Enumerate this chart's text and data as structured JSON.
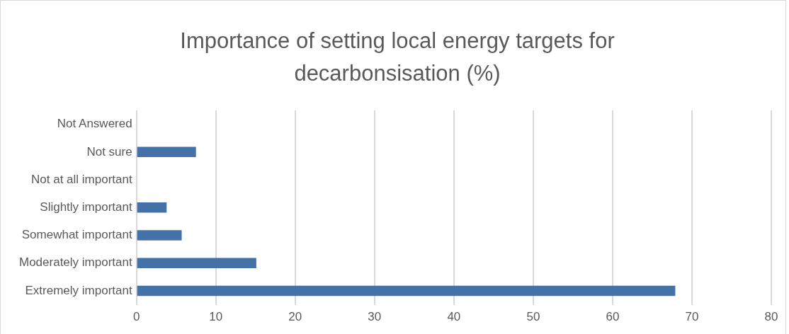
{
  "chart_data": {
    "type": "bar",
    "orientation": "horizontal",
    "title": "Importance of setting local energy targets for decarbonsisation (%)",
    "categories": [
      "Not Answered",
      "Not sure",
      "Not at all important",
      "Slightly important",
      "Somewhat important",
      "Moderately important",
      "Extremely important"
    ],
    "values": [
      0,
      7.5,
      0,
      3.8,
      5.7,
      15.1,
      67.9
    ],
    "color": "#4472a8",
    "xlim": [
      0,
      80
    ],
    "xticks": [
      0,
      10,
      20,
      30,
      40,
      50,
      60,
      70,
      80
    ],
    "grid": "x",
    "legend": false
  }
}
